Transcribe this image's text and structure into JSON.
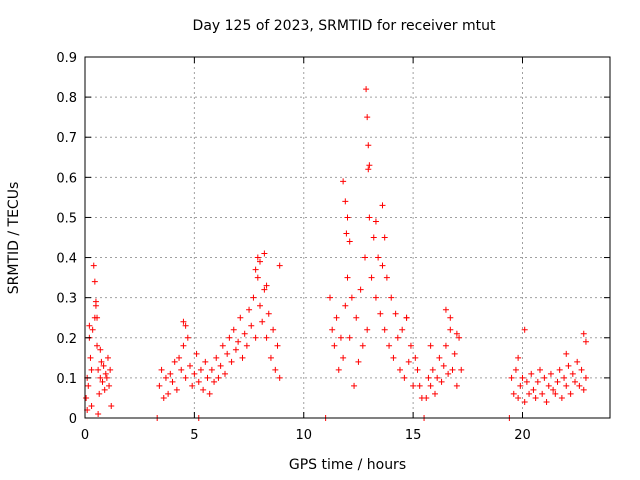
{
  "chart_data": {
    "type": "scatter",
    "title": "Day 125 of 2023, SRMTID for receiver mtut",
    "xlabel": "GPS time / hours",
    "ylabel": "SRMTID / TECUs",
    "xlim": [
      0,
      24
    ],
    "ylim": [
      0,
      0.9
    ],
    "xticks": [
      0,
      5,
      10,
      15,
      20
    ],
    "yticks": [
      0,
      0.1,
      0.2,
      0.3,
      0.4,
      0.5,
      0.6,
      0.7,
      0.8,
      0.9
    ],
    "grid": true,
    "marker": "+",
    "color": "#ff0000",
    "series": [
      {
        "name": "SRMTID",
        "x": [
          0.05,
          0.1,
          0.15,
          0.2,
          0.25,
          0.3,
          0.35,
          0.4,
          0.45,
          0.5,
          0.55,
          0.6,
          0.65,
          0.7,
          0.75,
          0.8,
          0.85,
          0.9,
          0.95,
          1.0,
          1.05,
          1.1,
          1.15,
          1.2,
          0.1,
          0.3,
          0.45,
          0.5,
          0.55,
          0.6,
          0.2,
          0.7,
          3.4,
          3.5,
          3.6,
          3.7,
          3.8,
          3.9,
          4.0,
          4.1,
          4.2,
          4.3,
          4.4,
          4.5,
          4.6,
          4.7,
          4.8,
          4.9,
          5.0,
          5.1,
          5.2,
          5.3,
          5.4,
          5.5,
          5.6,
          5.7,
          5.8,
          5.9,
          6.0,
          6.1,
          6.2,
          6.3,
          6.4,
          6.5,
          6.6,
          6.7,
          6.8,
          6.9,
          7.0,
          7.1,
          7.2,
          7.3,
          7.4,
          7.5,
          7.6,
          7.7,
          7.8,
          7.9,
          8.0,
          8.1,
          8.2,
          8.3,
          8.4,
          8.5,
          8.6,
          8.7,
          8.8,
          8.9,
          4.5,
          4.6,
          7.8,
          7.9,
          8.0,
          8.2,
          8.3,
          8.9,
          11.2,
          11.3,
          11.4,
          11.5,
          11.6,
          11.7,
          11.8,
          11.9,
          12.0,
          12.1,
          12.2,
          12.3,
          12.4,
          12.5,
          12.6,
          12.7,
          12.8,
          12.9,
          13.0,
          13.1,
          13.2,
          13.3,
          13.4,
          13.5,
          13.6,
          13.7,
          13.8,
          13.9,
          14.0,
          14.1,
          14.2,
          14.3,
          14.4,
          14.5,
          14.6,
          14.7,
          14.8,
          14.9,
          15.0,
          15.1,
          15.2,
          15.3,
          15.4,
          11.8,
          11.9,
          11.95,
          12.0,
          12.1,
          12.85,
          12.9,
          12.95,
          12.95,
          13.0,
          13.3,
          13.6,
          13.7,
          14.7,
          15.6,
          15.7,
          15.8,
          15.9,
          16.0,
          16.1,
          16.2,
          16.3,
          16.4,
          16.5,
          16.6,
          16.7,
          16.8,
          16.9,
          17.0,
          17.1,
          17.2,
          15.8,
          16.5,
          16.7,
          17.0,
          19.5,
          19.6,
          19.7,
          19.8,
          19.9,
          20.0,
          20.1,
          20.2,
          20.3,
          20.4,
          20.5,
          20.6,
          20.7,
          20.8,
          20.9,
          21.0,
          21.1,
          21.2,
          21.3,
          21.4,
          21.5,
          21.6,
          21.7,
          21.8,
          21.9,
          22.0,
          22.1,
          22.2,
          22.3,
          22.4,
          22.5,
          22.6,
          22.7,
          22.8,
          22.9,
          19.8,
          20.1,
          22.0,
          22.8,
          22.9,
          3.3,
          5.2,
          11.0,
          15.5,
          19.4
        ],
        "y": [
          0.05,
          0.1,
          0.08,
          0.2,
          0.15,
          0.12,
          0.22,
          0.38,
          0.25,
          0.29,
          0.18,
          0.12,
          0.06,
          0.1,
          0.14,
          0.09,
          0.13,
          0.07,
          0.11,
          0.1,
          0.15,
          0.08,
          0.12,
          0.03,
          0.02,
          0.03,
          0.34,
          0.28,
          0.25,
          0.01,
          0.23,
          0.17,
          0.08,
          0.12,
          0.05,
          0.1,
          0.06,
          0.11,
          0.09,
          0.14,
          0.07,
          0.15,
          0.12,
          0.18,
          0.1,
          0.2,
          0.13,
          0.08,
          0.11,
          0.16,
          0.09,
          0.12,
          0.07,
          0.14,
          0.1,
          0.06,
          0.12,
          0.09,
          0.15,
          0.1,
          0.13,
          0.18,
          0.11,
          0.16,
          0.2,
          0.14,
          0.22,
          0.17,
          0.19,
          0.25,
          0.15,
          0.21,
          0.18,
          0.27,
          0.23,
          0.3,
          0.2,
          0.35,
          0.28,
          0.24,
          0.32,
          0.2,
          0.26,
          0.15,
          0.22,
          0.12,
          0.18,
          0.1,
          0.24,
          0.23,
          0.37,
          0.4,
          0.39,
          0.41,
          0.33,
          0.38,
          0.3,
          0.22,
          0.18,
          0.25,
          0.12,
          0.2,
          0.15,
          0.28,
          0.35,
          0.2,
          0.3,
          0.08,
          0.25,
          0.14,
          0.32,
          0.18,
          0.4,
          0.22,
          0.5,
          0.35,
          0.45,
          0.3,
          0.4,
          0.26,
          0.38,
          0.22,
          0.35,
          0.18,
          0.3,
          0.15,
          0.26,
          0.2,
          0.12,
          0.22,
          0.1,
          0.25,
          0.14,
          0.18,
          0.08,
          0.15,
          0.12,
          0.08,
          0.05,
          0.59,
          0.54,
          0.46,
          0.5,
          0.44,
          0.82,
          0.75,
          0.68,
          0.62,
          0.63,
          0.49,
          0.53,
          0.45,
          0.25,
          0.05,
          0.1,
          0.08,
          0.12,
          0.06,
          0.1,
          0.15,
          0.09,
          0.13,
          0.18,
          0.11,
          0.22,
          0.12,
          0.16,
          0.08,
          0.2,
          0.12,
          0.18,
          0.27,
          0.25,
          0.21,
          0.1,
          0.06,
          0.12,
          0.05,
          0.08,
          0.1,
          0.04,
          0.09,
          0.06,
          0.11,
          0.07,
          0.05,
          0.09,
          0.12,
          0.06,
          0.1,
          0.04,
          0.08,
          0.11,
          0.07,
          0.06,
          0.09,
          0.12,
          0.05,
          0.1,
          0.08,
          0.13,
          0.06,
          0.11,
          0.09,
          0.14,
          0.08,
          0.12,
          0.07,
          0.1,
          0.15,
          0.22,
          0.16,
          0.21,
          0.19,
          0,
          0,
          0,
          0,
          0
        ]
      }
    ]
  }
}
